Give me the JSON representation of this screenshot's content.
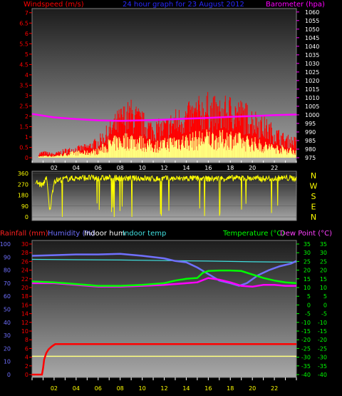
{
  "header": {
    "title": "24 hour graph for  23 August 2012",
    "windspeed_label": "Windspeed (m/s)",
    "barometer_label": "Barometer (hpa)"
  },
  "compass": [
    "N",
    "W",
    "S",
    "E",
    "N"
  ],
  "lower_labels": {
    "rainfall": "Rainfall (mm)",
    "humidity": "Humidity (%)",
    "indoor_hum": "Indoor hum",
    "indoor_temp": "Indoor temp",
    "temperature": "Temperature (°C)",
    "dew_point": "Dew Point (°C)"
  },
  "colors": {
    "windspeed": "#ff0000",
    "gust": "#ffff80",
    "barometer": "#ff00ff",
    "direction": "#ffff00",
    "rain": "#ff0000",
    "humidity": "#7070ff",
    "indoor_hum": "#ffff80",
    "indoor_temp": "#40e0e0",
    "temperature": "#00ff00",
    "dew_point": "#ff00ff"
  },
  "chart_data": [
    {
      "type": "bar",
      "name": "wind",
      "x_ticks": [
        "02",
        "04",
        "06",
        "08",
        "10",
        "12",
        "14",
        "16",
        "18",
        "20",
        "22"
      ],
      "y_left_ticks": [
        "0",
        "0.5",
        "1",
        "1.5",
        "2",
        "2.5",
        "3",
        "3.5",
        "4",
        "4.5",
        "5",
        "5.5",
        "6",
        "6.5",
        "7"
      ],
      "y_right_ticks": [
        "975",
        "980",
        "985",
        "990",
        "995",
        "1000",
        "1005",
        "1010",
        "1015",
        "1020",
        "1025",
        "1030",
        "1035",
        "1040",
        "1045",
        "1050",
        "1055",
        "1060"
      ],
      "ylim_left": [
        0,
        7.2
      ],
      "ylim_right": [
        975,
        1062
      ],
      "x_range_hours": [
        0,
        24
      ],
      "windspeed_envelope": {
        "hours": [
          0,
          1,
          2,
          3,
          4,
          5,
          6,
          7,
          8,
          9,
          10,
          11,
          12,
          13,
          14,
          15,
          16,
          17,
          18,
          19,
          20,
          21,
          22,
          23,
          24
        ],
        "values": [
          0.1,
          0.3,
          0.2,
          0.4,
          0.5,
          0.6,
          0.9,
          1.5,
          2.2,
          2.5,
          2.0,
          1.6,
          1.7,
          2.1,
          2.3,
          2.6,
          2.8,
          2.5,
          2.7,
          2.5,
          2.2,
          1.8,
          1.4,
          1.0,
          0.9
        ]
      },
      "gust_envelope": {
        "hours": [
          0,
          1,
          2,
          3,
          4,
          5,
          6,
          7,
          8,
          9,
          10,
          11,
          12,
          13,
          14,
          15,
          16,
          17,
          18,
          19,
          20,
          21,
          22,
          23,
          24
        ],
        "values": [
          0.0,
          0.1,
          0.1,
          0.2,
          0.3,
          0.3,
          0.4,
          0.8,
          1.0,
          1.1,
          0.9,
          0.7,
          0.8,
          1.0,
          1.0,
          1.1,
          1.2,
          1.1,
          1.2,
          1.0,
          0.9,
          0.7,
          0.6,
          0.5,
          0.4
        ]
      },
      "barometer": {
        "hours": [
          0,
          2,
          4,
          6,
          8,
          10,
          12,
          14,
          16,
          18,
          20,
          22,
          24
        ],
        "values": [
          1000.5,
          998.5,
          997.5,
          996.8,
          996.5,
          996.8,
          997.2,
          997.8,
          998.2,
          998.8,
          999.3,
          999.8,
          1000.2
        ]
      }
    },
    {
      "type": "scatter",
      "name": "wind-direction",
      "y_ticks": [
        "0",
        "90",
        "180",
        "270",
        "360"
      ],
      "ylim": [
        0,
        360
      ],
      "direction": {
        "hours": [
          0,
          0.5,
          1,
          1.3,
          1.6,
          2,
          3,
          4,
          5,
          6,
          7,
          8,
          9,
          10,
          11,
          12,
          13,
          14,
          15,
          16,
          17,
          18,
          19,
          20,
          21,
          22,
          23,
          24
        ],
        "values": [
          300,
          280,
          260,
          340,
          40,
          300,
          315,
          320,
          325,
          318,
          322,
          320,
          318,
          320,
          315,
          318,
          316,
          320,
          318,
          315,
          318,
          320,
          322,
          318,
          316,
          320,
          322,
          318
        ]
      }
    },
    {
      "type": "line",
      "name": "temperature-humidity-rain",
      "x_ticks": [
        "02",
        "04",
        "06",
        "08",
        "10",
        "12",
        "14",
        "16",
        "18",
        "20",
        "22"
      ],
      "y_percent_ticks": [
        "0",
        "10",
        "20",
        "30",
        "40",
        "50",
        "60",
        "70",
        "80",
        "90",
        "100"
      ],
      "y_rain_ticks": [
        "0",
        "2",
        "4",
        "6",
        "8",
        "10",
        "12",
        "14",
        "16",
        "18",
        "20",
        "22",
        "24",
        "26",
        "28",
        "30"
      ],
      "y_temp_ticks": [
        "-40",
        "-35",
        "-30",
        "-25",
        "-20",
        "-15",
        "-10",
        "-5",
        "0",
        "5",
        "10",
        "15",
        "20",
        "25",
        "30",
        "35"
      ],
      "ylim_percent": [
        0,
        100
      ],
      "ylim_rain": [
        0,
        30
      ],
      "ylim_temp": [
        -40,
        35
      ],
      "humidity": {
        "hours": [
          0,
          2,
          4,
          6,
          8,
          10,
          12,
          13,
          14,
          15,
          16,
          17,
          18,
          18.8,
          19.5,
          20.5,
          21.5,
          22.5,
          23.5,
          24
        ],
        "values": [
          91,
          91.5,
          92,
          92,
          92.5,
          91,
          89,
          87,
          86,
          82,
          77,
          72,
          70,
          68,
          70,
          76,
          80,
          83,
          85,
          87
        ]
      },
      "indoor_temp": {
        "hours": [
          0,
          4,
          8,
          12,
          16,
          20,
          24
        ],
        "values": [
          26.2,
          26.0,
          25.8,
          25.5,
          25.2,
          24.8,
          24.6
        ]
      },
      "temperature": {
        "hours": [
          0,
          2,
          4,
          6,
          8,
          10,
          12,
          13,
          14,
          15,
          15.5,
          16,
          17,
          18,
          19,
          20,
          21,
          22,
          23,
          24
        ],
        "values": [
          13.5,
          13.0,
          12.0,
          11.0,
          11.0,
          11.5,
          12.5,
          14.0,
          15.0,
          15.5,
          18.5,
          19.5,
          19.8,
          19.8,
          19.5,
          17.5,
          15.5,
          14.0,
          13.0,
          12.5
        ]
      },
      "dew_point": {
        "hours": [
          0,
          2,
          4,
          6,
          8,
          10,
          12,
          14,
          15,
          16,
          17,
          18,
          19,
          20,
          21,
          22,
          23,
          24
        ],
        "values": [
          12.5,
          12.5,
          11.5,
          10.5,
          10.5,
          11.0,
          11.5,
          12.5,
          13.0,
          15.5,
          14.5,
          13.0,
          11.0,
          10.5,
          11.5,
          11.5,
          11.0,
          11.0
        ]
      },
      "indoor_hum": {
        "hours": [
          0,
          4,
          8,
          12,
          16,
          20,
          24
        ],
        "values": [
          14,
          14,
          14,
          14,
          14,
          14,
          14
        ]
      },
      "rainfall": {
        "hours": [
          0,
          0.9,
          1.0,
          1.1,
          1.3,
          1.5,
          1.8,
          2.1,
          24
        ],
        "values": [
          0,
          0,
          1.5,
          3.5,
          5.0,
          5.8,
          6.5,
          7.0,
          7.0
        ]
      }
    }
  ]
}
